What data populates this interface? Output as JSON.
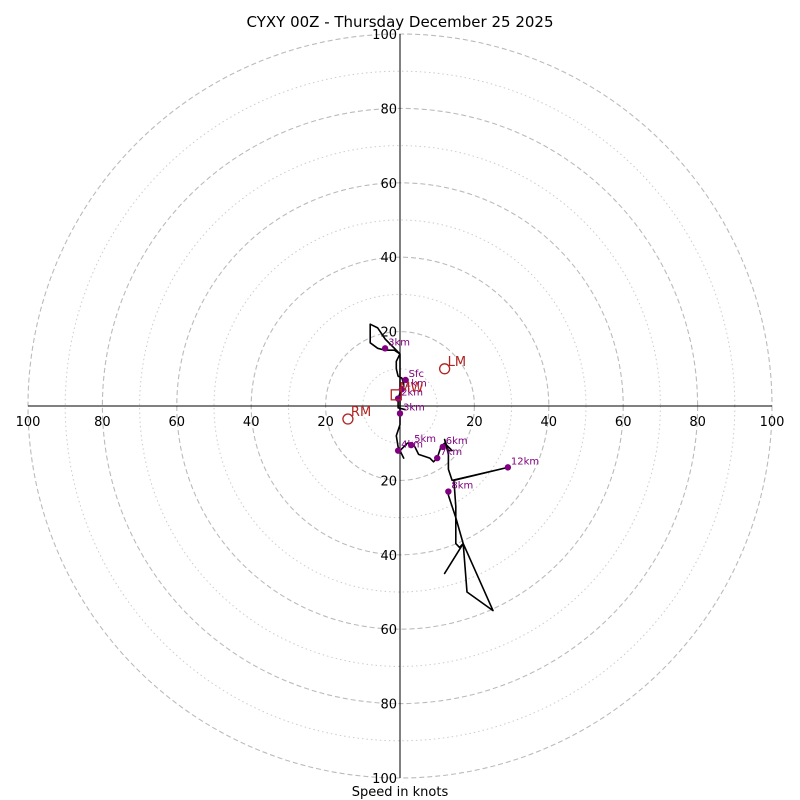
{
  "chart_data": {
    "type": "hodograph",
    "title": "CYXY 00Z - Thursday December 25 2025",
    "xlabel": "Speed in knots",
    "range": 100,
    "major_rings": [
      20,
      40,
      60,
      80,
      100
    ],
    "minor_rings": [
      10,
      30,
      50,
      70,
      90
    ],
    "tick_labels": [
      "20",
      "40",
      "60",
      "80",
      "100"
    ],
    "colors": {
      "grid_major": "#bbbbbb",
      "grid_minor": "#cccccc",
      "trace": "#000000",
      "points": "#800080",
      "motion": "#b22222"
    },
    "trace": [
      [
        1.5,
        -1
      ],
      [
        -0.5,
        -0.5
      ],
      [
        -0.5,
        2
      ],
      [
        0,
        3.5
      ],
      [
        1,
        5
      ],
      [
        1,
        6
      ],
      [
        0.5,
        7.5
      ],
      [
        -0.5,
        8
      ],
      [
        -1,
        10
      ],
      [
        -1,
        12
      ],
      [
        0,
        14
      ],
      [
        -1.5,
        15
      ],
      [
        -4,
        15
      ],
      [
        -6,
        15.5
      ],
      [
        -8,
        17
      ],
      [
        -8,
        20
      ],
      [
        -8,
        22
      ],
      [
        -6,
        21
      ],
      [
        -4,
        18
      ],
      [
        -2,
        16
      ],
      [
        -1,
        15
      ],
      [
        0,
        14
      ],
      [
        0,
        11
      ],
      [
        0,
        -2
      ],
      [
        0,
        -5
      ],
      [
        -1,
        -8
      ],
      [
        -0.5,
        -11
      ],
      [
        0,
        -12
      ],
      [
        1,
        -14
      ],
      [
        0,
        -12
      ],
      [
        2,
        -10
      ],
      [
        3,
        -10
      ],
      [
        4,
        -11
      ],
      [
        5,
        -13
      ],
      [
        8,
        -14
      ],
      [
        9,
        -15
      ],
      [
        10,
        -14
      ],
      [
        11,
        -11
      ],
      [
        12,
        -10
      ],
      [
        13,
        -11
      ],
      [
        14,
        -12
      ],
      [
        13,
        -12
      ],
      [
        12,
        -9
      ],
      [
        13,
        -13
      ],
      [
        13,
        -17
      ],
      [
        14,
        -20
      ],
      [
        29,
        -16.5
      ],
      [
        29,
        -16.5
      ],
      [
        14.5,
        -20
      ],
      [
        15,
        -27
      ],
      [
        15,
        -37
      ],
      [
        16,
        -38
      ],
      [
        17,
        -37
      ],
      [
        25,
        -55
      ],
      [
        18,
        -50
      ],
      [
        17,
        -37
      ],
      [
        12,
        -45
      ],
      [
        17,
        -37
      ],
      [
        15,
        -30
      ],
      [
        13,
        -24
      ],
      [
        13,
        -23
      ]
    ],
    "height_points": [
      {
        "label": "Sfc",
        "u": 1.5,
        "v": 7
      },
      {
        "label": "1km",
        "u": 0.5,
        "v": 4.5
      },
      {
        "label": "2km",
        "u": -0.5,
        "v": 2
      },
      {
        "label": "3km",
        "u": -4,
        "v": 15.5
      },
      {
        "label": "3km",
        "u": 0,
        "v": -2
      },
      {
        "label": "4km",
        "u": -0.5,
        "v": -12
      },
      {
        "label": "5km",
        "u": 3,
        "v": -10.5
      },
      {
        "label": "6km",
        "u": 11.5,
        "v": -11
      },
      {
        "label": "7km",
        "u": 10,
        "v": -14
      },
      {
        "label": "8km",
        "u": 13,
        "v": -23
      },
      {
        "label": "12km",
        "u": 29,
        "v": -16.5
      }
    ],
    "storm_motion": [
      {
        "label": "LM",
        "u": 12,
        "v": 10,
        "marker": "circle"
      },
      {
        "label": "RM",
        "u": -14,
        "v": -3.5,
        "marker": "circle"
      },
      {
        "label": "MW",
        "u": -1,
        "v": 3,
        "marker": "square"
      }
    ]
  }
}
